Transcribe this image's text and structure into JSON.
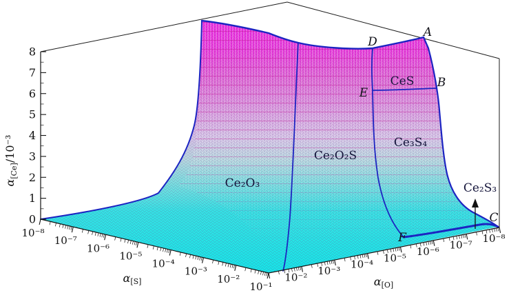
{
  "chart_data": {
    "type": "3d-surface",
    "z_axis": {
      "label": "α[Ce]/10⁻³",
      "label_parts": {
        "symbol": "α",
        "subscript": "[Ce]",
        "suffix": "/10⁻³"
      },
      "min": 0,
      "max": 8,
      "tick_step": 1,
      "ticks": [
        "8",
        "7",
        "6",
        "5",
        "4",
        "3",
        "2",
        "1",
        "0"
      ]
    },
    "s_axis": {
      "label": "α[S]",
      "label_parts": {
        "symbol": "α",
        "subscript": "[S]"
      },
      "scale": "log",
      "ticks": [
        "10⁻⁸",
        "10⁻⁷",
        "10⁻⁶",
        "10⁻⁵",
        "10⁻⁴",
        "10⁻³",
        "10⁻²",
        "10⁻¹"
      ]
    },
    "o_axis": {
      "label": "α[O]",
      "label_parts": {
        "symbol": "α",
        "subscript": "[O]"
      },
      "scale": "log",
      "ticks": [
        "10⁻²",
        "10⁻³",
        "10⁻⁴",
        "10⁻⁵",
        "10⁻⁶",
        "10⁻⁷",
        "10⁻⁸"
      ]
    },
    "regions": [
      {
        "label": "Ce₂O₃"
      },
      {
        "label": "Ce₂O₂S"
      },
      {
        "label": "Ce₃S₄"
      },
      {
        "label": "CeS"
      },
      {
        "label": "Ce₂S₃"
      }
    ],
    "vertex_labels": [
      "A",
      "B",
      "C",
      "D",
      "E",
      "F"
    ],
    "surface": {
      "plateau_alpha_ce": "8 (×10⁻³, clipped at top of box)",
      "floor_alpha_ce": "≈0 over high-α[S]/high-α[O] floor",
      "colormap": "cyan at low α[Ce] rising to magenta at high α[Ce]"
    }
  },
  "colors": {
    "floor": "#15e4e6",
    "plateau": "#ec25e2",
    "boundary": "#1c24c2",
    "frame": "#1a1a1a",
    "background": "#ffffff"
  }
}
